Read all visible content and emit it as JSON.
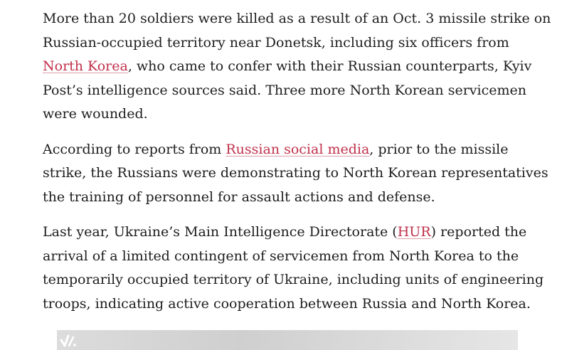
{
  "article": {
    "p1": {
      "line1": "More than 20 soldiers were killed as a result of an Oct. 3 missile strike on",
      "line2": "Russian-occupied territory near Donetsk, including six officers from",
      "link": "North Korea",
      "line3_rest": ", who came to confer with their Russian counterparts, Kyiv",
      "line4": "Post’s intelligence sources said. Three more North Korean servicemen",
      "line5": "were wounded."
    },
    "p2": {
      "line1_pre": "According to reports from ",
      "link": "Russian social media",
      "line1_post": ", prior to the missile",
      "line2": "strike, the Russians were demonstrating to North Korean representatives",
      "line3": "the training of personnel for assault actions and defense."
    },
    "p3": {
      "line1_pre": "Last year, Ukraine’s Main Intelligence Directorate (",
      "link": "HUR",
      "line1_post": ") reported the",
      "line2": "arrival of a limited contingent of servicemen from North Korea to the",
      "line3": "temporarily occupied territory of Ukraine, including units of engineering",
      "line4": "troops, indicating active cooperation between Russia and North Korea."
    }
  },
  "ad_bar": {
    "logo_icon": "checkmark-logo-icon",
    "background_color": "#d4d4d4"
  },
  "colors": {
    "link": "#c0304a",
    "text": "#1d1d1d"
  }
}
